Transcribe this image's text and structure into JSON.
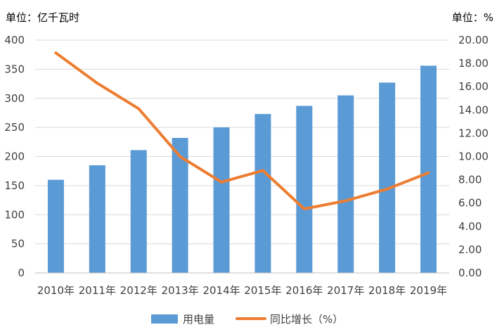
{
  "chart_data": {
    "type": "bar",
    "categories": [
      "2010年",
      "2011年",
      "2012年",
      "2013年",
      "2014年",
      "2015年",
      "2016年",
      "2017年",
      "2018年",
      "2019年"
    ],
    "left_axis": {
      "unit_label": "单位：亿千瓦时",
      "ylim": [
        0,
        400
      ],
      "ticks": [
        "0",
        "50",
        "100",
        "150",
        "200",
        "250",
        "300",
        "350",
        "400"
      ]
    },
    "right_axis": {
      "unit_label": "单位：%",
      "ylim": [
        0,
        20
      ],
      "ticks": [
        "0.00",
        "2.00",
        "4.00",
        "6.00",
        "8.00",
        "10.00",
        "12.00",
        "14.00",
        "16.00",
        "18.00",
        "20.00"
      ]
    },
    "series": [
      {
        "name": "用电量",
        "type": "bar",
        "axis": "left",
        "color": "#5B9BD5",
        "values": [
          160,
          185,
          211,
          232,
          250,
          273,
          287,
          305,
          327,
          356
        ]
      },
      {
        "name": "同比增长（%）",
        "type": "line",
        "axis": "right",
        "color": "#ED7D31",
        "values": [
          18.9,
          16.3,
          14.1,
          10.0,
          7.8,
          8.8,
          5.5,
          6.2,
          7.2,
          8.6
        ]
      }
    ],
    "grid": true,
    "legend_position": "bottom"
  }
}
